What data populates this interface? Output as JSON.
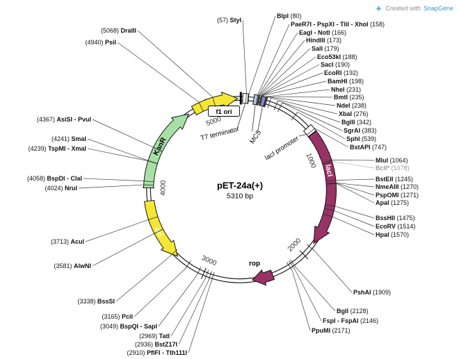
{
  "watermark": {
    "created_with": "Created with",
    "brand": "SnapGene"
  },
  "plasmid": {
    "name": "pET-24a(+)",
    "size_label": "5310 bp",
    "length_bp": 5310
  },
  "colors": {
    "backbone": "#1c1c1c",
    "callout_line": "#3d3d3d",
    "muted_site": "#9a9a9a",
    "brand_blue": "#2e9bd6"
  },
  "tick_labels": [
    {
      "label": "1000",
      "bp": 1000
    },
    {
      "label": "2000",
      "bp": 2000
    },
    {
      "label": "3000",
      "bp": 3000
    },
    {
      "label": "4000",
      "bp": 4000
    },
    {
      "label": "5000",
      "bp": 5000
    }
  ],
  "features": [
    {
      "id": "t7-terminator",
      "label": "T7 terminator",
      "color": "#ffffff",
      "label_color": "#000000"
    },
    {
      "id": "mcs",
      "label": "MCS",
      "color": "#b5c4e0",
      "color2": "#8b87c6",
      "label_color": "#000000"
    },
    {
      "id": "laci-promoter",
      "label": "lacI promoter",
      "color": "#ffffff",
      "label_color": "#000000"
    },
    {
      "id": "laci",
      "label": "lacI",
      "color": "#993366",
      "label_color": "#ffffff"
    },
    {
      "id": "rop",
      "label": "rop",
      "color": "#993366",
      "label_color": "#000000"
    },
    {
      "id": "ori",
      "label": "ori",
      "color": "#f5e636",
      "label_color": "#ffffff"
    },
    {
      "id": "kanr",
      "label": "KanR",
      "color": "#a6e0a6",
      "label_color": "#000000"
    },
    {
      "id": "f1-ori",
      "label": "f1 ori",
      "color": "#f5e636",
      "label_color": "#000000"
    }
  ],
  "sites_left": [
    {
      "name": "StyI",
      "bp": 57
    },
    {
      "name": "DraIII",
      "bp": 5068
    },
    {
      "name": "PsiI",
      "bp": 4940
    },
    {
      "name": "AsiSI - PvuI",
      "bp": 4367
    },
    {
      "name": "SmaI",
      "bp": 4241
    },
    {
      "name": "TspMI - XmaI",
      "bp": 4239
    },
    {
      "name": "BspDI - ClaI",
      "bp": 4058
    },
    {
      "name": "NruI",
      "bp": 4024
    },
    {
      "name": "AcuI",
      "bp": 3713
    },
    {
      "name": "AlwNI",
      "bp": 3581
    },
    {
      "name": "BssSI",
      "bp": 3338
    },
    {
      "name": "PciI",
      "bp": 3165
    },
    {
      "name": "BspQI - SapI",
      "bp": 3049
    },
    {
      "name": "TatI",
      "bp": 2969
    },
    {
      "name": "BstZ17I",
      "bp": 2936
    },
    {
      "name": "PflFI - Tth111I",
      "bp": 2910
    }
  ],
  "sites_right": [
    {
      "name": "BlpI",
      "bp": 80
    },
    {
      "name": "PaeR7I - PspXI - TliI - XhoI",
      "bp": 158
    },
    {
      "name": "EagI - NotI",
      "bp": 166
    },
    {
      "name": "HindIII",
      "bp": 173
    },
    {
      "name": "SalI",
      "bp": 179
    },
    {
      "name": "Eco53kI",
      "bp": 188
    },
    {
      "name": "SacI",
      "bp": 190
    },
    {
      "name": "EcoRI",
      "bp": 192
    },
    {
      "name": "BamHI",
      "bp": 198
    },
    {
      "name": "NheI",
      "bp": 231
    },
    {
      "name": "BmtI",
      "bp": 235
    },
    {
      "name": "NdeI",
      "bp": 238
    },
    {
      "name": "XbaI",
      "bp": 276
    },
    {
      "name": "BglII",
      "bp": 342
    },
    {
      "name": "SgrAI",
      "bp": 383
    },
    {
      "name": "SphI",
      "bp": 539
    },
    {
      "name": "BstAPI",
      "bp": 747
    },
    {
      "name": "MluI",
      "bp": 1064
    },
    {
      "name": "BclI*",
      "bp": 1078,
      "muted": true
    },
    {
      "name": "BstEII",
      "bp": 1245
    },
    {
      "name": "NmeAIII",
      "bp": 1270
    },
    {
      "name": "PspOMI",
      "bp": 1271
    },
    {
      "name": "ApaI",
      "bp": 1275
    },
    {
      "name": "BssHII",
      "bp": 1475
    },
    {
      "name": "EcoRV",
      "bp": 1514
    },
    {
      "name": "HpaI",
      "bp": 1570
    },
    {
      "name": "PshAI",
      "bp": 1909
    },
    {
      "name": "BglI",
      "bp": 2128
    },
    {
      "name": "FspI - FspAI",
      "bp": 2146
    },
    {
      "name": "PpuMI",
      "bp": 2171
    }
  ]
}
